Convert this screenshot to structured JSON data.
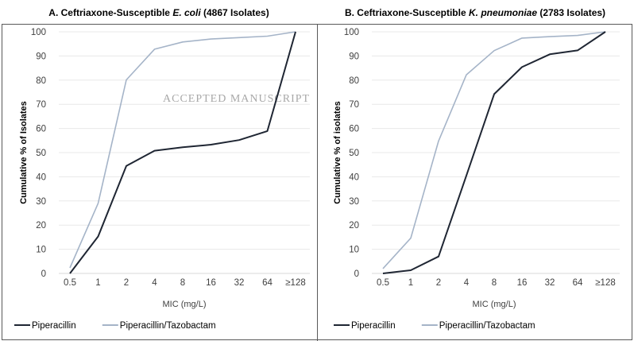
{
  "watermark": "ACCEPTED MANUSCRIPT",
  "chart_data": [
    {
      "type": "line",
      "title_prefix": "A. Ceftriaxone-Susceptible ",
      "title_italic": "E. coli",
      "title_suffix": " (4867 Isolates)",
      "xlabel": "MIC (mg/L)",
      "ylabel": "Cumulative % of Isolates",
      "categories": [
        "0.5",
        "1",
        "2",
        "4",
        "8",
        "16",
        "32",
        "64",
        "≥128"
      ],
      "yticks": [
        "0",
        "10",
        "20",
        "30",
        "40",
        "50",
        "60",
        "70",
        "80",
        "90",
        "100"
      ],
      "ylim": [
        0,
        100
      ],
      "grid": true,
      "legend_position": "bottom-left",
      "series": [
        {
          "name": "Piperacillin",
          "color": "#1f2633",
          "values": [
            0,
            15.3,
            44.5,
            50.8,
            52.2,
            53.3,
            55.2,
            58.9,
            100
          ]
        },
        {
          "name": "Piperacillin/Tazobactam",
          "color": "#a5b4c8",
          "values": [
            2.3,
            29,
            80.1,
            92.8,
            95.8,
            97,
            97.6,
            98.2,
            100
          ]
        }
      ]
    },
    {
      "type": "line",
      "title_prefix": "B. Ceftriaxone-Susceptible ",
      "title_italic": "K. pneumoniae",
      "title_suffix": " (2783 Isolates)",
      "xlabel": "MIC (mg/L)",
      "ylabel": "Cumulative % of isolates",
      "categories": [
        "0.5",
        "1",
        "2",
        "4",
        "8",
        "16",
        "32",
        "64",
        "≥128"
      ],
      "yticks": [
        "0",
        "10",
        "20",
        "30",
        "40",
        "50",
        "60",
        "70",
        "80",
        "90",
        "100"
      ],
      "ylim": [
        0,
        100
      ],
      "grid": true,
      "legend_position": "bottom-left",
      "series": [
        {
          "name": "Piperacillin",
          "color": "#1f2633",
          "values": [
            0,
            1.3,
            7,
            40.5,
            74.2,
            85.4,
            90.7,
            92.3,
            100
          ]
        },
        {
          "name": "Piperacillin/Tazobactam",
          "color": "#a5b4c8",
          "values": [
            2,
            14.6,
            54.8,
            82.2,
            92.2,
            97.4,
            98,
            98.5,
            100
          ]
        }
      ]
    }
  ]
}
